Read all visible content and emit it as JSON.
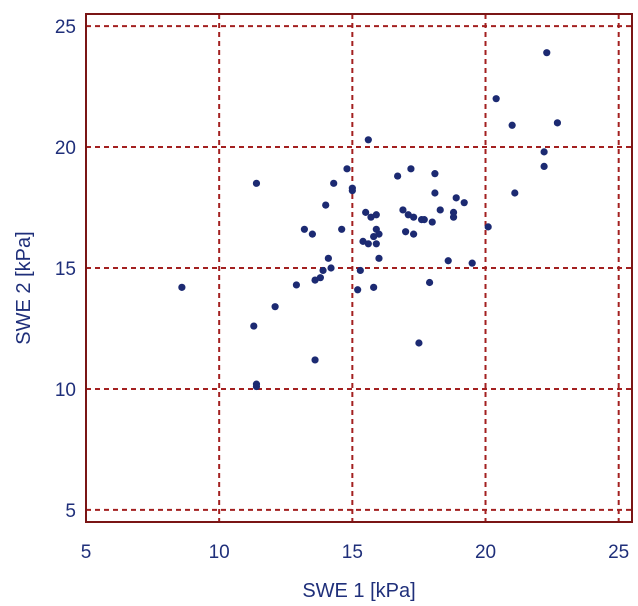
{
  "chart_data": {
    "type": "scatter",
    "title": "",
    "xlabel": "SWE 1 [kPa]",
    "ylabel": "SWE 2 [kPa]",
    "xlim": [
      5,
      25.5
    ],
    "ylim": [
      4.5,
      25.5
    ],
    "xticks": [
      5,
      10,
      15,
      20,
      25
    ],
    "yticks": [
      5,
      10,
      15,
      20,
      25
    ],
    "grid": true,
    "legend": "none",
    "colors": {
      "points": "#1c2a72",
      "grid": "#a32020",
      "frame": "#7a1515",
      "text": "#1f2f7a"
    },
    "series": [
      {
        "x": [
          8.6,
          11.4,
          11.3,
          11.4,
          11.4,
          12.1,
          12.9,
          13.2,
          13.5,
          13.6,
          13.6,
          13.8,
          13.9,
          14.0,
          14.1,
          14.2,
          14.3,
          14.6,
          14.8,
          15.0,
          15.0,
          15.2,
          15.3,
          15.4,
          15.5,
          15.6,
          15.6,
          15.7,
          15.8,
          15.8,
          15.9,
          15.9,
          15.9,
          16.0,
          16.0,
          16.7,
          16.9,
          17.0,
          17.1,
          17.2,
          17.3,
          17.3,
          17.5,
          17.6,
          17.7,
          17.9,
          18.0,
          18.1,
          18.1,
          18.3,
          18.6,
          18.8,
          18.8,
          18.9,
          19.2,
          19.5,
          20.1,
          20.4,
          21.0,
          21.1,
          22.2,
          22.2,
          22.3,
          22.7
        ],
        "y": [
          14.2,
          18.5,
          12.6,
          10.2,
          10.1,
          13.4,
          14.3,
          16.6,
          16.4,
          14.5,
          11.2,
          14.6,
          14.9,
          17.6,
          15.4,
          15.0,
          18.5,
          16.6,
          19.1,
          18.2,
          18.3,
          14.1,
          14.9,
          16.1,
          17.3,
          16.0,
          20.3,
          17.1,
          16.3,
          14.2,
          17.2,
          16.6,
          16.0,
          15.4,
          16.4,
          18.8,
          17.4,
          16.5,
          17.2,
          19.1,
          17.1,
          16.4,
          11.9,
          17.0,
          17.0,
          14.4,
          16.9,
          18.1,
          18.9,
          17.4,
          15.3,
          17.3,
          17.1,
          17.9,
          17.7,
          15.2,
          16.7,
          22.0,
          20.9,
          18.1,
          19.8,
          19.2,
          23.9,
          21.0
        ]
      }
    ]
  }
}
